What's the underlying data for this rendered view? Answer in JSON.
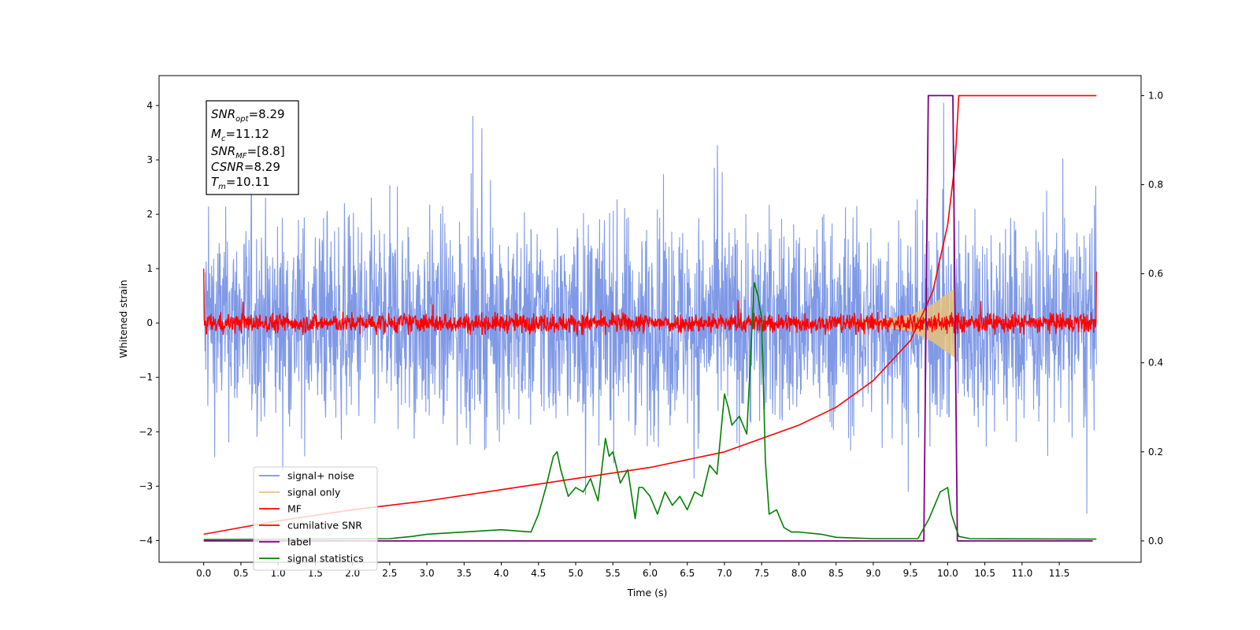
{
  "chart_data": {
    "type": "line",
    "xlabel": "Time (s)",
    "ylabel": "Whitened strain",
    "xlim": [
      -0.6,
      12.6
    ],
    "ylim": [
      -4.4,
      4.55
    ],
    "y2lim": [
      -0.048,
      1.045
    ],
    "x_ticks": [
      "0.0",
      "0.5",
      "1.0",
      "1.5",
      "2.0",
      "2.5",
      "3.0",
      "3.5",
      "4.0",
      "4.5",
      "5.0",
      "5.5",
      "6.0",
      "6.5",
      "7.0",
      "7.5",
      "8.0",
      "8.5",
      "9.0",
      "9.5",
      "10.0",
      "10.5",
      "11.0",
      "11.5"
    ],
    "y_ticks": [
      "4",
      "3",
      "2",
      "1",
      "0",
      "−1",
      "−2",
      "−3",
      "−4"
    ],
    "y2_ticks": [
      "1.0",
      "0.8",
      "0.6",
      "0.4",
      "0.2",
      "0.0"
    ],
    "annotation": {
      "snr_opt": "=8.29",
      "mc": "=11.12",
      "snr_mf": "=[8.8]",
      "csnr": "=8.29",
      "tm": "=10.11"
    },
    "legend_location": "lower-left",
    "series": [
      {
        "name": "signal+ noise",
        "color": "#7893e6",
        "axis": "left",
        "envelope": "noise band ±2.5 with peaks to ±4, t=0–12"
      },
      {
        "name": "signal only",
        "color": "#e8c27a",
        "axis": "left",
        "chirp_t": [
          0.0,
          9.0,
          9.5,
          9.8,
          10.0,
          10.11
        ],
        "chirp_amp": [
          0.02,
          0.05,
          0.15,
          0.35,
          0.55,
          0.65
        ]
      },
      {
        "name": "MF",
        "color": "#ff0000",
        "axis": "left",
        "envelope": "±0.25 around 0, t=0–12"
      },
      {
        "name": "cumilative SNR",
        "color": "#ff0000",
        "axis": "right",
        "x": [
          0.0,
          1.0,
          2.0,
          3.0,
          4.0,
          5.0,
          6.0,
          7.0,
          8.0,
          8.5,
          9.0,
          9.5,
          9.8,
          10.0,
          10.1,
          10.15,
          12.0
        ],
        "y": [
          0.015,
          0.045,
          0.07,
          0.09,
          0.115,
          0.14,
          0.165,
          0.2,
          0.26,
          0.3,
          0.36,
          0.45,
          0.56,
          0.71,
          0.85,
          1.0,
          1.0
        ]
      },
      {
        "name": "label",
        "color": "#800080",
        "axis": "right",
        "x": [
          0.0,
          9.68,
          9.74,
          10.07,
          10.13,
          11.95
        ],
        "y": [
          0.0,
          0.0,
          1.0,
          1.0,
          0.0,
          0.0
        ]
      },
      {
        "name": "signal statistics",
        "color": "#008000",
        "axis": "right",
        "x": [
          0.0,
          2.5,
          2.8,
          3.0,
          3.5,
          4.0,
          4.4,
          4.5,
          4.6,
          4.7,
          4.75,
          4.8,
          4.9,
          5.0,
          5.1,
          5.2,
          5.3,
          5.4,
          5.45,
          5.5,
          5.6,
          5.7,
          5.8,
          5.85,
          5.9,
          6.0,
          6.1,
          6.2,
          6.3,
          6.4,
          6.5,
          6.6,
          6.7,
          6.8,
          6.9,
          7.0,
          7.05,
          7.1,
          7.2,
          7.3,
          7.4,
          7.45,
          7.5,
          7.55,
          7.6,
          7.7,
          7.8,
          7.9,
          8.0,
          8.3,
          8.5,
          9.0,
          9.6,
          9.75,
          9.9,
          10.0,
          10.05,
          10.15,
          10.3,
          12.0
        ],
        "y": [
          0.003,
          0.005,
          0.01,
          0.015,
          0.02,
          0.025,
          0.02,
          0.06,
          0.12,
          0.19,
          0.2,
          0.16,
          0.1,
          0.12,
          0.11,
          0.14,
          0.09,
          0.23,
          0.19,
          0.2,
          0.13,
          0.16,
          0.05,
          0.12,
          0.12,
          0.1,
          0.06,
          0.11,
          0.08,
          0.1,
          0.07,
          0.11,
          0.1,
          0.17,
          0.15,
          0.33,
          0.3,
          0.26,
          0.28,
          0.24,
          0.58,
          0.55,
          0.5,
          0.18,
          0.06,
          0.07,
          0.03,
          0.02,
          0.02,
          0.015,
          0.008,
          0.005,
          0.005,
          0.05,
          0.11,
          0.12,
          0.06,
          0.01,
          0.005,
          0.004
        ]
      }
    ]
  }
}
